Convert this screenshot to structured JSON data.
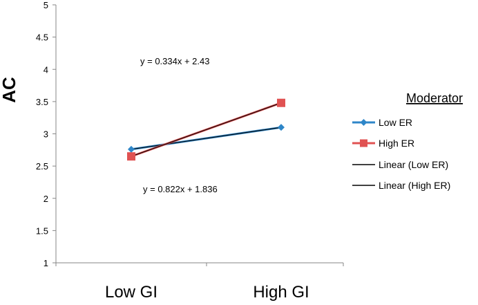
{
  "chart_data": {
    "type": "line",
    "categories": [
      "Low GI",
      "High GI"
    ],
    "ylabel": "AC",
    "xlabel": "",
    "ylim": [
      1,
      5
    ],
    "yticks": [
      "1",
      "1.5",
      "2",
      "2.5",
      "3",
      "3.5",
      "4",
      "4.5",
      "5"
    ],
    "grid": false,
    "legend": {
      "title": "Moderator",
      "placement": "right",
      "entries": [
        "Low ER",
        "High ER",
        "Linear (Low ER)",
        "Linear (High ER)"
      ]
    },
    "series": [
      {
        "name": "Low ER",
        "values": [
          2.76,
          3.1
        ],
        "color": "#2e86c8",
        "marker": "diamond"
      },
      {
        "name": "High ER",
        "values": [
          2.65,
          3.48
        ],
        "color": "#e05252",
        "marker": "square"
      }
    ],
    "trendlines": [
      {
        "name": "Linear (Low ER)",
        "color": "#000000",
        "equation": "y = 0.334x + 2.43"
      },
      {
        "name": "Linear (High ER)",
        "color": "#000000",
        "equation": "y = 0.822x + 1.836"
      }
    ]
  }
}
